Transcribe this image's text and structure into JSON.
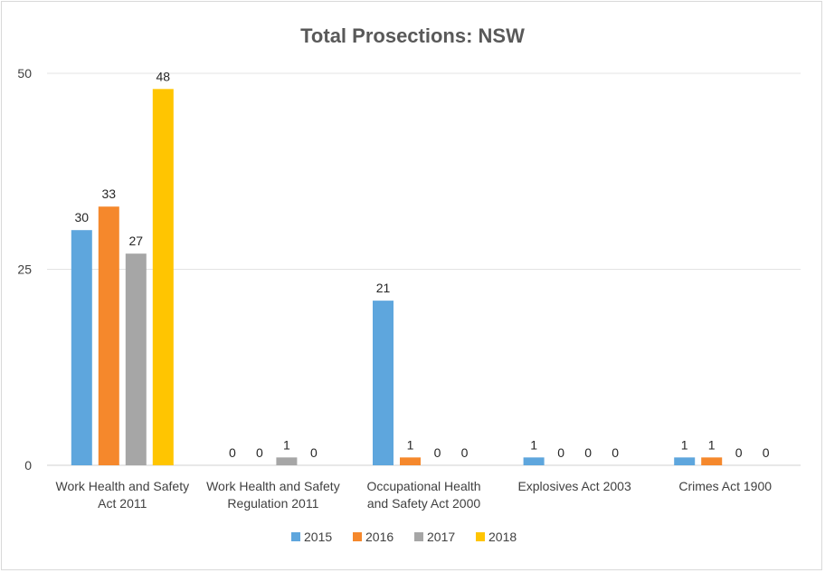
{
  "chart_data": {
    "type": "bar",
    "title": "Total Prosections: NSW",
    "categories": [
      [
        "Work Health and Safety",
        "Act 2011"
      ],
      [
        "Work Health and Safety",
        "Regulation 2011"
      ],
      [
        "Occupational Health",
        "and Safety Act 2000"
      ],
      [
        "Explosives Act 2003"
      ],
      [
        "Crimes Act 1900"
      ]
    ],
    "series": [
      {
        "name": "2015",
        "color": "#5ea6dd",
        "values": [
          30,
          0,
          21,
          1,
          1
        ]
      },
      {
        "name": "2016",
        "color": "#f5882c",
        "values": [
          33,
          0,
          1,
          0,
          1
        ]
      },
      {
        "name": "2017",
        "color": "#a6a6a6",
        "values": [
          27,
          1,
          0,
          0,
          0
        ]
      },
      {
        "name": "2018",
        "color": "#ffc501",
        "values": [
          48,
          0,
          0,
          0,
          0
        ]
      }
    ],
    "yticks": [
      0,
      25,
      50
    ],
    "ylim": [
      0,
      50
    ],
    "grid": true,
    "legend": "bottom",
    "data_labels": true
  }
}
